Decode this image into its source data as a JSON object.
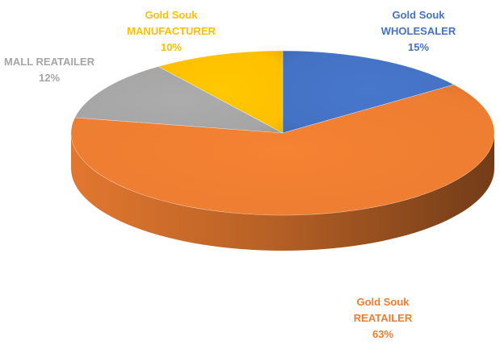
{
  "chart_data": {
    "type": "pie",
    "title": "",
    "style": "3d",
    "series": [
      {
        "name": "Gold Souk WHOLESALER",
        "label_lines": [
          "Gold Souk",
          "WHOLESALER"
        ],
        "value": 15,
        "value_label": "15%",
        "color": "#4472C4"
      },
      {
        "name": "Gold Souk REATAILER",
        "label_lines": [
          "Gold Souk",
          "REATAILER"
        ],
        "value": 63,
        "value_label": "63%",
        "color": "#ED7D31"
      },
      {
        "name": "MALL REATAILER",
        "label_lines": [
          "MALL REATAILER"
        ],
        "value": 12,
        "value_label": "12%",
        "color": "#A5A5A5"
      },
      {
        "name": "Gold Souk MANUFACTURER",
        "label_lines": [
          "Gold Souk",
          "MANUFACTURER"
        ],
        "value": 10,
        "value_label": "10%",
        "color": "#FFC000"
      }
    ]
  }
}
